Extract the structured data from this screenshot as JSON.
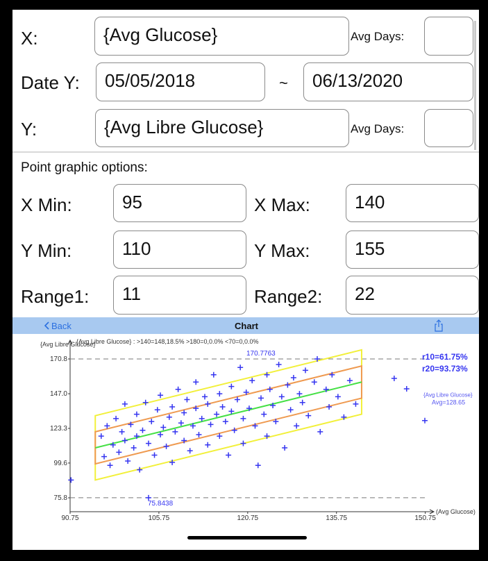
{
  "form": {
    "x": {
      "label": "X:",
      "value": "{Avg Glucose}",
      "days_label": "Avg Days:"
    },
    "date": {
      "label": "Date Y:",
      "from": "05/05/2018",
      "sep": "~",
      "to": "06/13/2020"
    },
    "y": {
      "label": "Y:",
      "value": "{Avg Libre Glucose}",
      "days_label": "Avg Days:"
    },
    "options_title": "Point graphic options:",
    "x_min": {
      "label": "X Min:",
      "value": 95
    },
    "x_max": {
      "label": "X Max:",
      "value": 140
    },
    "y_min": {
      "label": "Y Min:",
      "value": 110
    },
    "y_max": {
      "label": "Y Max:",
      "value": 155
    },
    "range1": {
      "label": "Range1:",
      "value": 11
    },
    "range2": {
      "label": "Range2:",
      "value": 22
    }
  },
  "nav": {
    "back": "Back",
    "title": "Chart"
  },
  "chart_data": {
    "type": "scatter",
    "subtitle": "{Avg Libre Glucose} : >140=148,18.5%  >180=0,0.0%  <70=0,0.0%",
    "y_label": "{Avg Libre Glucose}",
    "x_label": "(Avg Glucose)",
    "xlim": [
      90.75,
      152.2
    ],
    "ylim": [
      66.3,
      180.3
    ],
    "xticks": [
      90.75,
      105.75,
      120.75,
      135.75,
      150.75
    ],
    "yticks": [
      75.8,
      99.6,
      123.3,
      {
        "value": 147,
        "label": "147.0"
      },
      170.8
    ],
    "max_line": 170.7763,
    "min_line": 75.8438,
    "r10": "r10=61.75%",
    "r20": "r20=93.73%",
    "avg": {
      "name": "{Avg Libre Glucose}",
      "label": "Avg=128.65",
      "value": 128.65
    },
    "color": "#3535f0",
    "regression_color": "#45e045",
    "range1_color": "#ef9a50",
    "range2_color": "#f2f03a",
    "x": [
      96,
      96.5,
      97,
      97.5,
      98,
      98.5,
      99,
      99.5,
      100,
      100,
      100.5,
      101,
      101.5,
      102,
      102,
      102.5,
      103,
      103.5,
      104,
      104,
      104.5,
      105,
      105.5,
      106,
      106,
      106.5,
      107,
      107.5,
      108,
      108,
      108.5,
      109,
      109.5,
      110,
      110,
      110.5,
      111,
      111.5,
      112,
      112,
      112.5,
      113,
      113.5,
      114,
      114,
      114.5,
      115,
      115.5,
      116,
      116,
      116.5,
      117,
      117.5,
      118,
      118,
      118.5,
      119,
      119.5,
      120,
      120,
      120.5,
      121,
      121.5,
      122,
      122.5,
      123,
      123.5,
      124,
      124,
      124.5,
      125,
      125.5,
      126,
      126.5,
      127,
      127.5,
      128,
      128.5,
      129,
      129.5,
      130,
      130.5,
      131,
      132,
      132.5,
      133,
      134,
      134.5,
      135,
      136,
      137,
      138,
      139,
      90.9,
      145.5,
      147.6
    ],
    "values": [
      118,
      104,
      125,
      98,
      112,
      130,
      107,
      121,
      140,
      115,
      101,
      126,
      110,
      133,
      118,
      95,
      122,
      141,
      113,
      75.8438,
      128,
      105,
      136,
      119,
      146,
      124,
      111,
      131,
      100,
      138,
      121,
      150,
      127,
      115,
      134,
      143,
      108,
      125,
      137,
      155,
      119,
      130,
      145,
      112,
      140,
      126,
      160,
      133,
      118,
      147,
      138,
      128,
      105,
      152,
      135,
      122,
      143,
      165,
      130,
      113,
      148,
      137,
      156,
      125,
      98,
      144,
      133,
      160,
      118,
      150,
      139,
      128,
      167,
      145,
      110,
      153,
      136,
      158,
      125,
      147,
      141,
      163,
      132,
      155,
      170.7763,
      121,
      150,
      138,
      160,
      145,
      131,
      156,
      140,
      88,
      157.5,
      150.4
    ]
  }
}
